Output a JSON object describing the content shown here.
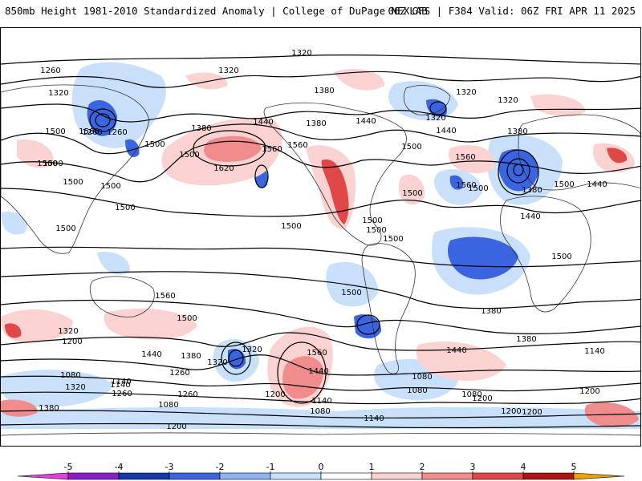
{
  "header": {
    "left_title": "850mb Height 1981-2010 Standardized Anomaly | College of DuPage NEXLAB",
    "right_title": "06Z GFS | F384 Valid: 06Z FRI APR 11 2025"
  },
  "colorbar": {
    "ticks": [
      "-5",
      "-4",
      "-3",
      "-2",
      "-1",
      "0",
      "1",
      "2",
      "3",
      "4",
      "5"
    ],
    "colors": [
      "#e040e0",
      "#8a1fc8",
      "#1438a8",
      "#3a64e0",
      "#8fb4f0",
      "#c8e0fa",
      "#ffffff",
      "#fad2d2",
      "#f08c8c",
      "#e04848",
      "#b01414",
      "#f0a000"
    ]
  },
  "map": {
    "contour_labels": [
      {
        "text": "1320"
      },
      {
        "text": "1260"
      },
      {
        "text": "1320"
      },
      {
        "text": "1320"
      },
      {
        "text": "1380"
      },
      {
        "text": "1320"
      },
      {
        "text": "1260"
      },
      {
        "text": "1320"
      },
      {
        "text": "1320"
      },
      {
        "text": "1380"
      },
      {
        "text": "1380"
      },
      {
        "text": "1440"
      },
      {
        "text": "1440"
      },
      {
        "text": "1560"
      },
      {
        "text": "1500"
      },
      {
        "text": "1500"
      },
      {
        "text": "1500"
      },
      {
        "text": "1380"
      },
      {
        "text": "1560"
      },
      {
        "text": "1440"
      },
      {
        "text": "1560"
      },
      {
        "text": "1620"
      },
      {
        "text": "1560"
      },
      {
        "text": "1260"
      },
      {
        "text": "1500"
      },
      {
        "text": "1500"
      },
      {
        "text": "1500"
      },
      {
        "text": "1500"
      },
      {
        "text": "1500"
      },
      {
        "text": "1560"
      },
      {
        "text": "1500"
      },
      {
        "text": "1500"
      },
      {
        "text": "1440"
      },
      {
        "text": "1380"
      },
      {
        "text": "1500"
      },
      {
        "text": "1500"
      },
      {
        "text": "1500"
      },
      {
        "text": "1500"
      },
      {
        "text": "1500"
      },
      {
        "text": "1500"
      },
      {
        "text": "1500"
      },
      {
        "text": "1560"
      },
      {
        "text": "1500"
      },
      {
        "text": "1500"
      },
      {
        "text": "1440"
      },
      {
        "text": "1380"
      },
      {
        "text": "1500"
      },
      {
        "text": "1320"
      },
      {
        "text": "1200"
      },
      {
        "text": "1440"
      },
      {
        "text": "1380"
      },
      {
        "text": "1320"
      },
      {
        "text": "1560"
      },
      {
        "text": "1440"
      },
      {
        "text": "1440"
      },
      {
        "text": "1380"
      },
      {
        "text": "1140"
      },
      {
        "text": "1260"
      },
      {
        "text": "1320"
      },
      {
        "text": "1200"
      },
      {
        "text": "1260"
      },
      {
        "text": "1140"
      },
      {
        "text": "1080"
      },
      {
        "text": "1140"
      },
      {
        "text": "1080"
      },
      {
        "text": "1320"
      },
      {
        "text": "1260"
      },
      {
        "text": "1080"
      },
      {
        "text": "1140"
      },
      {
        "text": "1200"
      },
      {
        "text": "1080"
      },
      {
        "text": "1080"
      },
      {
        "text": "1140"
      },
      {
        "text": "1080"
      },
      {
        "text": "1200"
      },
      {
        "text": "1380"
      },
      {
        "text": "1200"
      },
      {
        "text": "1200"
      },
      {
        "text": "1200"
      }
    ]
  }
}
